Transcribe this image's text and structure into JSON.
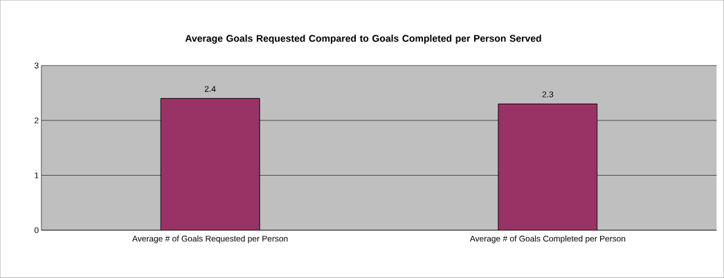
{
  "chart_data": {
    "type": "bar",
    "title": "Average Goals Requested Compared to Goals Completed per Person Served",
    "categories": [
      "Average # of Goals Requested per Person",
      "Average # of Goals Completed per Person"
    ],
    "values": [
      2.4,
      2.3
    ],
    "color": "#993366",
    "data_labels": true,
    "ylim": [
      0,
      3
    ],
    "yticks": [
      0,
      1,
      2,
      3
    ],
    "grid": "y"
  }
}
